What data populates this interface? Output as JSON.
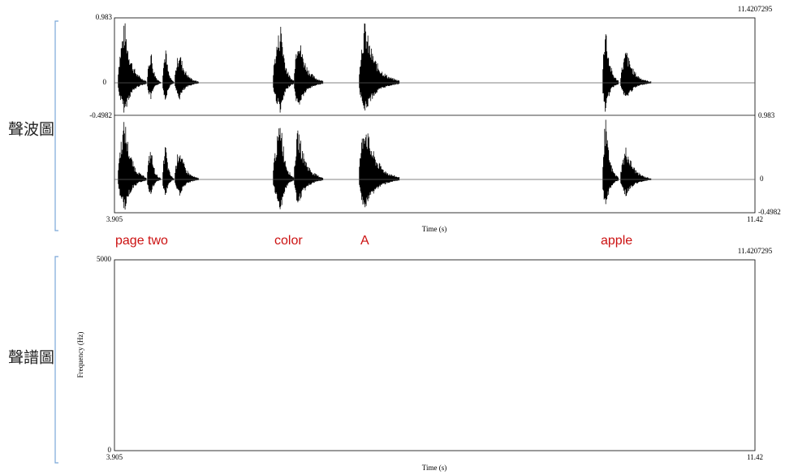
{
  "labels": {
    "waveform": "聲波圖",
    "spectrogram": "聲譜圖"
  },
  "waveform": {
    "end_time_top": "11.4207295",
    "ch1_top": "0.983",
    "ch1_zero": "0",
    "ch1_bottom": "-0.4982",
    "ch2_top": "0.983",
    "ch2_zero": "0",
    "ch2_bottom": "-0.4982",
    "x_start": "3.905",
    "x_end": "11.42",
    "x_label": "Time (s)"
  },
  "words": [
    "page two",
    "color",
    "A",
    "apple"
  ],
  "spectrogram": {
    "end_time_top": "11.4207295",
    "y_top": "5000",
    "y_bottom": "0",
    "y_label": "Frequency (Hz)",
    "x_start": "3.905",
    "x_end": "11.42",
    "x_label": "Time (s)"
  }
}
